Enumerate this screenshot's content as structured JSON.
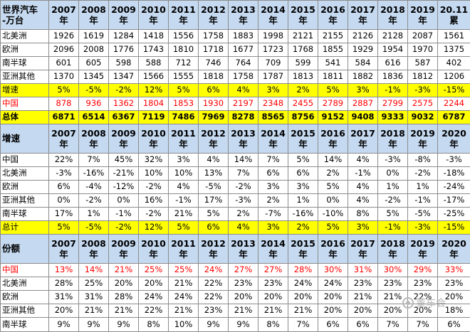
{
  "years": [
    "2007",
    "2008",
    "2009",
    "2010",
    "2011",
    "2012",
    "2013",
    "2014",
    "2015",
    "2016",
    "2017",
    "2018",
    "2019"
  ],
  "year_suffix": "年",
  "last_col": {
    "top": "20.11",
    "bottom": "累"
  },
  "last_col_year": "2020",
  "sec1": {
    "header_label": [
      "世界汽车",
      "-万台"
    ],
    "rows": [
      {
        "label": "北美洲",
        "values": [
          "1926",
          "1619",
          "1284",
          "1418",
          "1556",
          "1758",
          "1883",
          "1998",
          "2121",
          "2155",
          "2126",
          "2128",
          "2087",
          "1561"
        ]
      },
      {
        "label": "欧洲",
        "values": [
          "2096",
          "2008",
          "1776",
          "1743",
          "1810",
          "1718",
          "1677",
          "1723",
          "1768",
          "1855",
          "1929",
          "1954",
          "1970",
          "1375"
        ]
      },
      {
        "label": "南半球",
        "values": [
          "601",
          "605",
          "598",
          "588",
          "712",
          "746",
          "764",
          "709",
          "599",
          "541",
          "584",
          "616",
          "587",
          "402"
        ]
      },
      {
        "label": "亚洲其他",
        "values": [
          "1370",
          "1345",
          "1347",
          "1566",
          "1555",
          "1818",
          "1758",
          "1787",
          "1813",
          "1811",
          "1882",
          "1836",
          "1812",
          "1206"
        ]
      },
      {
        "label": "增速",
        "values": [
          "5%",
          "-5%",
          "-2%",
          "12%",
          "5%",
          "6%",
          "4%",
          "3%",
          "2%",
          "5%",
          "3%",
          "-1%",
          "-3%",
          "-15%"
        ]
      },
      {
        "label": "中国",
        "values": [
          "878",
          "936",
          "1362",
          "1804",
          "1853",
          "1930",
          "2197",
          "2348",
          "2455",
          "2789",
          "2887",
          "2799",
          "2575",
          "2244"
        ]
      },
      {
        "label": "总体",
        "values": [
          "6871",
          "6514",
          "6367",
          "7119",
          "7486",
          "7969",
          "8278",
          "8565",
          "8756",
          "9152",
          "9408",
          "9333",
          "9032",
          "6787"
        ]
      }
    ]
  },
  "sec2": {
    "header_label": "增速",
    "rows": [
      {
        "label": "中国",
        "values": [
          "22%",
          "7%",
          "45%",
          "32%",
          "3%",
          "4%",
          "14%",
          "7%",
          "5%",
          "14%",
          "4%",
          "-3%",
          "-8%",
          "-3%"
        ]
      },
      {
        "label": "北美洲",
        "values": [
          "-3%",
          "-16%",
          "-21%",
          "10%",
          "10%",
          "13%",
          "7%",
          "6%",
          "6%",
          "2%",
          "-1%",
          "0%",
          "-2%",
          "-18%"
        ]
      },
      {
        "label": "欧洲",
        "values": [
          "6%",
          "-4%",
          "-12%",
          "-2%",
          "4%",
          "-5%",
          "-2%",
          "3%",
          "3%",
          "5%",
          "4%",
          "1%",
          "1%",
          "-24%"
        ]
      },
      {
        "label": "亚洲其他",
        "values": [
          "0%",
          "-2%",
          "0%",
          "16%",
          "-1%",
          "17%",
          "-3%",
          "2%",
          "1%",
          "0%",
          "4%",
          "-2%",
          "-1%",
          "-17%"
        ]
      },
      {
        "label": "南半球",
        "values": [
          "17%",
          "1%",
          "-1%",
          "-2%",
          "21%",
          "5%",
          "2%",
          "-7%",
          "-16%",
          "-10%",
          "8%",
          "5%",
          "-5%",
          "-25%"
        ]
      },
      {
        "label": "总计",
        "values": [
          "5%",
          "-5%",
          "-2%",
          "12%",
          "5%",
          "6%",
          "4%",
          "3%",
          "2%",
          "5%",
          "3%",
          "-1%",
          "-3%",
          "-15%"
        ]
      }
    ]
  },
  "sec3": {
    "header_label": "份额",
    "rows": [
      {
        "label": "中国",
        "values": [
          "13%",
          "14%",
          "21%",
          "25%",
          "25%",
          "24%",
          "27%",
          "27%",
          "28%",
          "30%",
          "31%",
          "30%",
          "29%",
          "33%"
        ]
      },
      {
        "label": "北美洲",
        "values": [
          "28%",
          "25%",
          "20%",
          "20%",
          "21%",
          "22%",
          "23%",
          "23%",
          "24%",
          "24%",
          "23%",
          "23%",
          "23%",
          "23%"
        ]
      },
      {
        "label": "欧洲",
        "values": [
          "31%",
          "31%",
          "28%",
          "24%",
          "24%",
          "22%",
          "20%",
          "20%",
          "20%",
          "20%",
          "21%",
          "21%",
          "22%",
          "20%"
        ]
      },
      {
        "label": "亚洲其他",
        "values": [
          "20%",
          "21%",
          "21%",
          "22%",
          "21%",
          "23%",
          "21%",
          "21%",
          "21%",
          "20%",
          "20%",
          "20%",
          "20%",
          "18%"
        ]
      },
      {
        "label": "南半球",
        "values": [
          "9%",
          "9%",
          "9%",
          "8%",
          "10%",
          "9%",
          "9%",
          "8%",
          "7%",
          "6%",
          "6%",
          "7%",
          "7%",
          "6%"
        ]
      }
    ]
  },
  "watermark": {
    "text": "董车会",
    "icon": "wechat-icon"
  }
}
